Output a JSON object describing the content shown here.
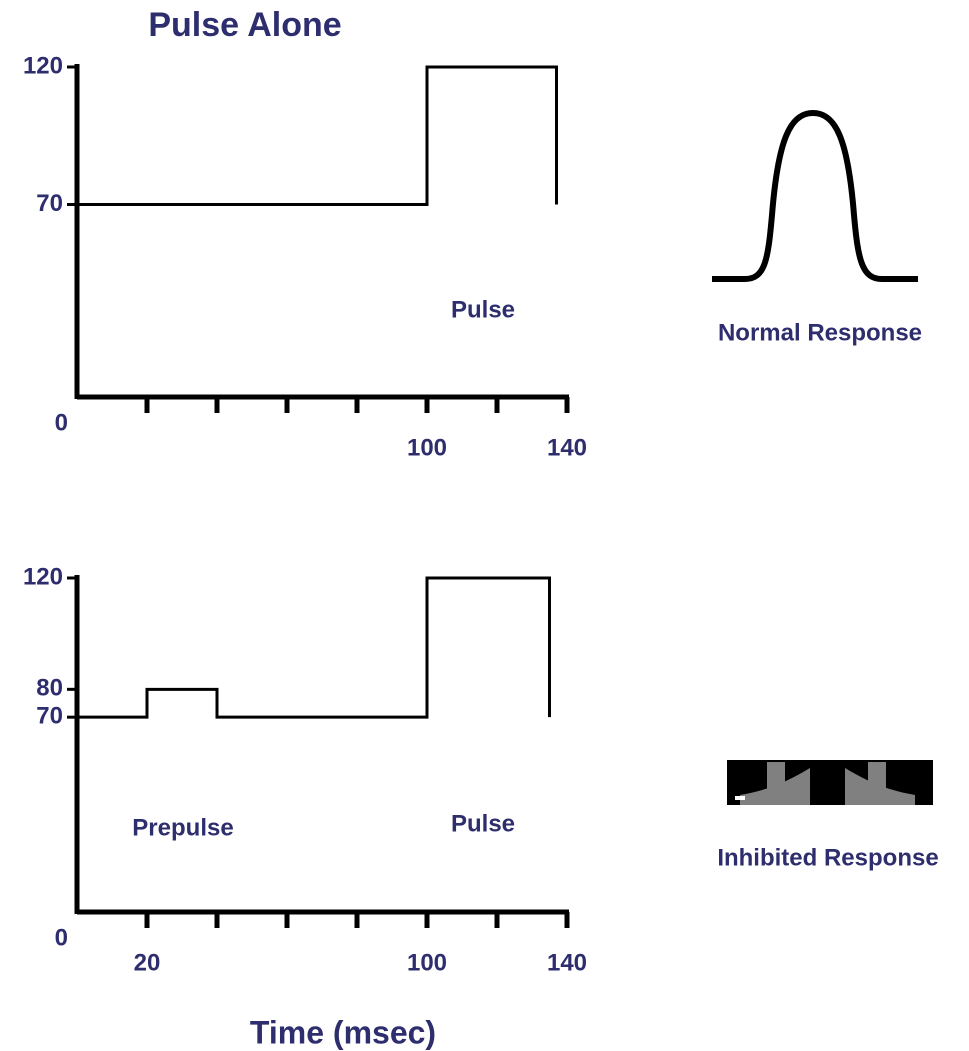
{
  "chart_data": [
    {
      "type": "line",
      "title": "Pulse Alone",
      "x": [
        0,
        100,
        100,
        137,
        137
      ],
      "series": [
        {
          "color": "#000000",
          "values": [
            70,
            70,
            120,
            120,
            70
          ]
        }
      ],
      "xlim": [
        0,
        140
      ],
      "xticks": [
        100,
        140
      ],
      "xtick_marks": [
        20,
        40,
        60,
        80,
        100,
        120,
        140
      ],
      "ylim": [
        0,
        120
      ],
      "yticks": [
        0,
        70,
        120
      ],
      "annotations": [
        "Pulse"
      ],
      "response_label": "Normal Response"
    },
    {
      "type": "line",
      "xlabel": "Time (msec)",
      "x": [
        0,
        20,
        20,
        40,
        40,
        100,
        100,
        135,
        135
      ],
      "series": [
        {
          "color": "#000000",
          "values": [
            70,
            70,
            80,
            80,
            70,
            70,
            120,
            120,
            70
          ]
        }
      ],
      "xlim": [
        0,
        140
      ],
      "xticks": [
        20,
        100,
        140
      ],
      "xtick_marks": [
        20,
        40,
        60,
        80,
        100,
        120,
        140
      ],
      "ylim": [
        0,
        120
      ],
      "yticks": [
        0,
        70,
        80,
        120
      ],
      "annotations": [
        "Prepulse",
        "Pulse"
      ],
      "response_label": "Inhibited Response"
    }
  ]
}
